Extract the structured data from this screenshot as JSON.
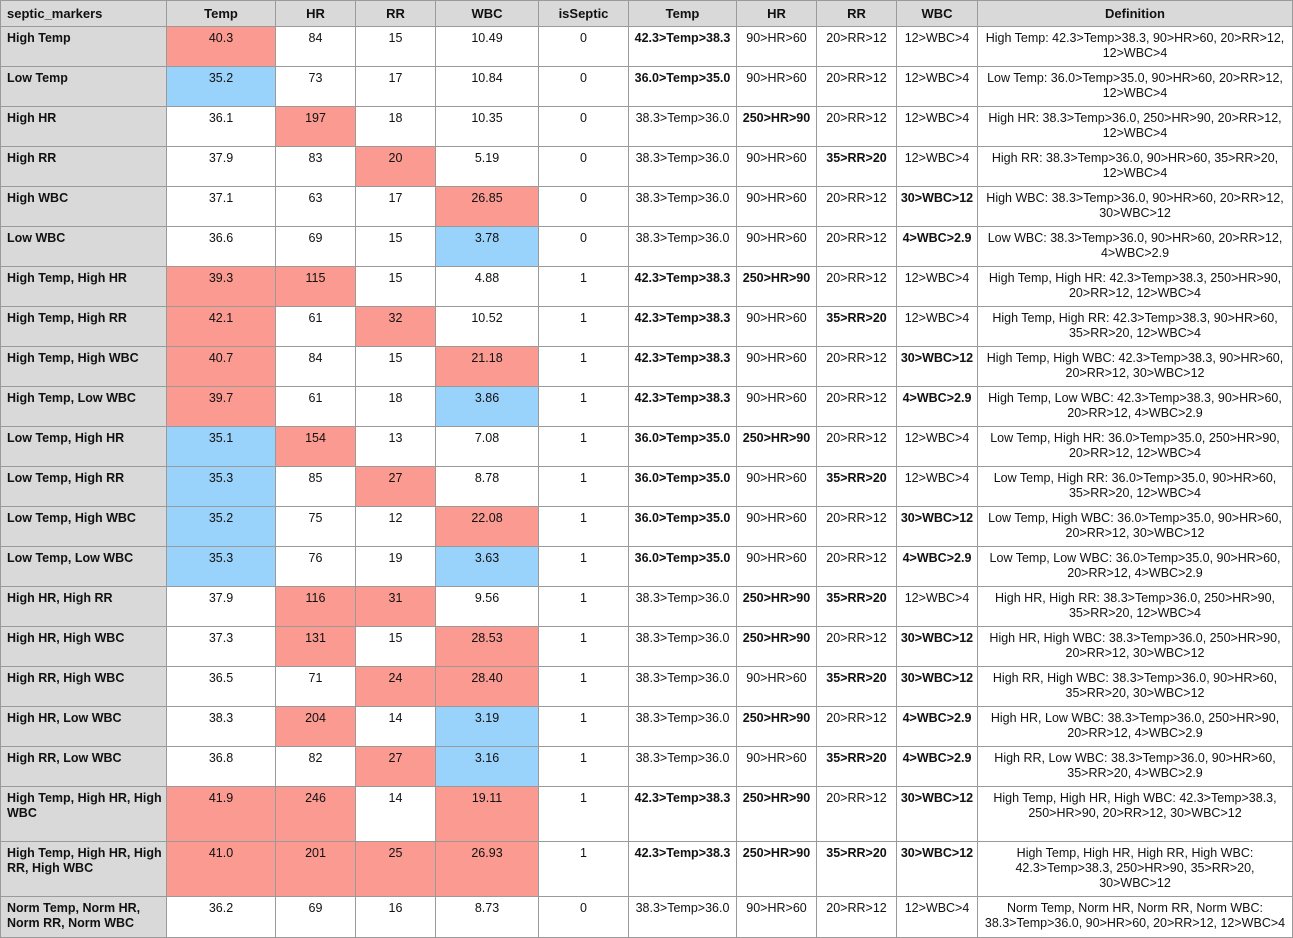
{
  "columns": [
    "septic_markers",
    "Temp",
    "HR",
    "RR",
    "WBC",
    "isSeptic",
    "Temp",
    "HR",
    "RR",
    "WBC",
    "Definition"
  ],
  "colors": {
    "high": "#fa9a91",
    "low": "#99d3fc",
    "header": "#d9d9d9"
  },
  "rows": [
    {
      "name": "High Temp",
      "temp": "40.3",
      "hr": "84",
      "rr": "15",
      "wbc": "10.49",
      "septic": "0",
      "rTemp": "42.3>Temp>38.3",
      "rHr": "90>HR>60",
      "rRr": "20>RR>12",
      "rWbc": "12>WBC>4",
      "def": "High Temp: 42.3>Temp>38.3, 90>HR>60, 20>RR>12, 12>WBC>4",
      "s": {
        "temp": "hi",
        "rTemp": "b"
      }
    },
    {
      "name": "Low Temp",
      "temp": "35.2",
      "hr": "73",
      "rr": "17",
      "wbc": "10.84",
      "septic": "0",
      "rTemp": "36.0>Temp>35.0",
      "rHr": "90>HR>60",
      "rRr": "20>RR>12",
      "rWbc": "12>WBC>4",
      "def": "Low Temp: 36.0>Temp>35.0, 90>HR>60, 20>RR>12, 12>WBC>4",
      "s": {
        "temp": "lo",
        "rTemp": "b"
      }
    },
    {
      "name": "High HR",
      "temp": "36.1",
      "hr": "197",
      "rr": "18",
      "wbc": "10.35",
      "septic": "0",
      "rTemp": "38.3>Temp>36.0",
      "rHr": "250>HR>90",
      "rRr": "20>RR>12",
      "rWbc": "12>WBC>4",
      "def": "High HR: 38.3>Temp>36.0, 250>HR>90, 20>RR>12, 12>WBC>4",
      "s": {
        "hr": "hi",
        "rHr": "b"
      }
    },
    {
      "name": "High RR",
      "temp": "37.9",
      "hr": "83",
      "rr": "20",
      "wbc": "5.19",
      "septic": "0",
      "rTemp": "38.3>Temp>36.0",
      "rHr": "90>HR>60",
      "rRr": "35>RR>20",
      "rWbc": "12>WBC>4",
      "def": "High RR: 38.3>Temp>36.0, 90>HR>60, 35>RR>20, 12>WBC>4",
      "s": {
        "rr": "hi",
        "rRr": "b"
      }
    },
    {
      "name": "High WBC",
      "temp": "37.1",
      "hr": "63",
      "rr": "17",
      "wbc": "26.85",
      "septic": "0",
      "rTemp": "38.3>Temp>36.0",
      "rHr": "90>HR>60",
      "rRr": "20>RR>12",
      "rWbc": "30>WBC>12",
      "def": "High WBC: 38.3>Temp>36.0, 90>HR>60, 20>RR>12, 30>WBC>12",
      "s": {
        "wbc": "hi",
        "rWbc": "b"
      }
    },
    {
      "name": "Low WBC",
      "temp": "36.6",
      "hr": "69",
      "rr": "15",
      "wbc": "3.78",
      "septic": "0",
      "rTemp": "38.3>Temp>36.0",
      "rHr": "90>HR>60",
      "rRr": "20>RR>12",
      "rWbc": "4>WBC>2.9",
      "def": "Low WBC: 38.3>Temp>36.0, 90>HR>60, 20>RR>12, 4>WBC>2.9",
      "s": {
        "wbc": "lo",
        "rWbc": "b"
      }
    },
    {
      "name": "High Temp, High HR",
      "temp": "39.3",
      "hr": "115",
      "rr": "15",
      "wbc": "4.88",
      "septic": "1",
      "rTemp": "42.3>Temp>38.3",
      "rHr": "250>HR>90",
      "rRr": "20>RR>12",
      "rWbc": "12>WBC>4",
      "def": "High Temp, High HR: 42.3>Temp>38.3, 250>HR>90, 20>RR>12, 12>WBC>4",
      "s": {
        "temp": "hi",
        "hr": "hi",
        "rTemp": "b",
        "rHr": "b"
      }
    },
    {
      "name": "High Temp, High RR",
      "temp": "42.1",
      "hr": "61",
      "rr": "32",
      "wbc": "10.52",
      "septic": "1",
      "rTemp": "42.3>Temp>38.3",
      "rHr": "90>HR>60",
      "rRr": "35>RR>20",
      "rWbc": "12>WBC>4",
      "def": "High Temp, High RR: 42.3>Temp>38.3, 90>HR>60, 35>RR>20, 12>WBC>4",
      "s": {
        "temp": "hi",
        "rr": "hi",
        "rTemp": "b",
        "rRr": "b"
      }
    },
    {
      "name": "High Temp, High WBC",
      "temp": "40.7",
      "hr": "84",
      "rr": "15",
      "wbc": "21.18",
      "septic": "1",
      "rTemp": "42.3>Temp>38.3",
      "rHr": "90>HR>60",
      "rRr": "20>RR>12",
      "rWbc": "30>WBC>12",
      "def": "High Temp, High WBC: 42.3>Temp>38.3, 90>HR>60, 20>RR>12, 30>WBC>12",
      "s": {
        "temp": "hi",
        "wbc": "hi",
        "rTemp": "b",
        "rWbc": "b"
      }
    },
    {
      "name": "High Temp, Low WBC",
      "temp": "39.7",
      "hr": "61",
      "rr": "18",
      "wbc": "3.86",
      "septic": "1",
      "rTemp": "42.3>Temp>38.3",
      "rHr": "90>HR>60",
      "rRr": "20>RR>12",
      "rWbc": "4>WBC>2.9",
      "def": "High Temp, Low WBC: 42.3>Temp>38.3, 90>HR>60, 20>RR>12, 4>WBC>2.9",
      "s": {
        "temp": "hi",
        "wbc": "lo",
        "rTemp": "b",
        "rWbc": "b"
      }
    },
    {
      "name": "Low Temp, High HR",
      "temp": "35.1",
      "hr": "154",
      "rr": "13",
      "wbc": "7.08",
      "septic": "1",
      "rTemp": "36.0>Temp>35.0",
      "rHr": "250>HR>90",
      "rRr": "20>RR>12",
      "rWbc": "12>WBC>4",
      "def": "Low Temp, High HR: 36.0>Temp>35.0, 250>HR>90, 20>RR>12, 12>WBC>4",
      "s": {
        "temp": "lo",
        "hr": "hi",
        "rTemp": "b",
        "rHr": "b"
      }
    },
    {
      "name": "Low Temp, High RR",
      "temp": "35.3",
      "hr": "85",
      "rr": "27",
      "wbc": "8.78",
      "septic": "1",
      "rTemp": "36.0>Temp>35.0",
      "rHr": "90>HR>60",
      "rRr": "35>RR>20",
      "rWbc": "12>WBC>4",
      "def": "Low Temp, High RR: 36.0>Temp>35.0, 90>HR>60, 35>RR>20, 12>WBC>4",
      "s": {
        "temp": "lo",
        "rr": "hi",
        "rTemp": "b",
        "rRr": "b"
      }
    },
    {
      "name": "Low Temp, High WBC",
      "temp": "35.2",
      "hr": "75",
      "rr": "12",
      "wbc": "22.08",
      "septic": "1",
      "rTemp": "36.0>Temp>35.0",
      "rHr": "90>HR>60",
      "rRr": "20>RR>12",
      "rWbc": "30>WBC>12",
      "def": "Low Temp, High WBC: 36.0>Temp>35.0, 90>HR>60, 20>RR>12, 30>WBC>12",
      "s": {
        "temp": "lo",
        "wbc": "hi",
        "rTemp": "b",
        "rWbc": "b"
      }
    },
    {
      "name": "Low Temp, Low WBC",
      "temp": "35.3",
      "hr": "76",
      "rr": "19",
      "wbc": "3.63",
      "septic": "1",
      "rTemp": "36.0>Temp>35.0",
      "rHr": "90>HR>60",
      "rRr": "20>RR>12",
      "rWbc": "4>WBC>2.9",
      "def": "Low Temp, Low WBC: 36.0>Temp>35.0, 90>HR>60, 20>RR>12, 4>WBC>2.9",
      "s": {
        "temp": "lo",
        "wbc": "lo",
        "rTemp": "b",
        "rWbc": "b"
      }
    },
    {
      "name": "High HR, High RR",
      "temp": "37.9",
      "hr": "116",
      "rr": "31",
      "wbc": "9.56",
      "septic": "1",
      "rTemp": "38.3>Temp>36.0",
      "rHr": "250>HR>90",
      "rRr": "35>RR>20",
      "rWbc": "12>WBC>4",
      "def": "High HR, High RR: 38.3>Temp>36.0, 250>HR>90, 35>RR>20, 12>WBC>4",
      "s": {
        "hr": "hi",
        "rr": "hi",
        "rHr": "b",
        "rRr": "b"
      }
    },
    {
      "name": "High HR, High WBC",
      "temp": "37.3",
      "hr": "131",
      "rr": "15",
      "wbc": "28.53",
      "septic": "1",
      "rTemp": "38.3>Temp>36.0",
      "rHr": "250>HR>90",
      "rRr": "20>RR>12",
      "rWbc": "30>WBC>12",
      "def": "High HR, High WBC: 38.3>Temp>36.0, 250>HR>90, 20>RR>12, 30>WBC>12",
      "s": {
        "hr": "hi",
        "wbc": "hi",
        "rHr": "b",
        "rWbc": "b"
      }
    },
    {
      "name": "High RR, High WBC",
      "temp": "36.5",
      "hr": "71",
      "rr": "24",
      "wbc": "28.40",
      "septic": "1",
      "rTemp": "38.3>Temp>36.0",
      "rHr": "90>HR>60",
      "rRr": "35>RR>20",
      "rWbc": "30>WBC>12",
      "def": "High RR, High WBC: 38.3>Temp>36.0, 90>HR>60, 35>RR>20, 30>WBC>12",
      "s": {
        "rr": "hi",
        "wbc": "hi",
        "rRr": "b",
        "rWbc": "b"
      }
    },
    {
      "name": "High HR, Low WBC",
      "temp": "38.3",
      "hr": "204",
      "rr": "14",
      "wbc": "3.19",
      "septic": "1",
      "rTemp": "38.3>Temp>36.0",
      "rHr": "250>HR>90",
      "rRr": "20>RR>12",
      "rWbc": "4>WBC>2.9",
      "def": "High HR, Low WBC: 38.3>Temp>36.0, 250>HR>90, 20>RR>12, 4>WBC>2.9",
      "s": {
        "hr": "hi",
        "wbc": "lo",
        "rHr": "b",
        "rWbc": "b"
      }
    },
    {
      "name": "High RR, Low WBC",
      "temp": "36.8",
      "hr": "82",
      "rr": "27",
      "wbc": "3.16",
      "septic": "1",
      "rTemp": "38.3>Temp>36.0",
      "rHr": "90>HR>60",
      "rRr": "35>RR>20",
      "rWbc": "4>WBC>2.9",
      "def": "High RR, Low WBC: 38.3>Temp>36.0, 90>HR>60, 35>RR>20, 4>WBC>2.9",
      "s": {
        "rr": "hi",
        "wbc": "lo",
        "rRr": "b",
        "rWbc": "b"
      }
    },
    {
      "name": "High Temp, High HR, High WBC",
      "temp": "41.9",
      "hr": "246",
      "rr": "14",
      "wbc": "19.11",
      "septic": "1",
      "rTemp": "42.3>Temp>38.3",
      "rHr": "250>HR>90",
      "rRr": "20>RR>12",
      "rWbc": "30>WBC>12",
      "def": "High Temp, High HR, High WBC: 42.3>Temp>38.3, 250>HR>90, 20>RR>12, 30>WBC>12",
      "s": {
        "temp": "hi",
        "hr": "hi",
        "wbc": "hi",
        "rTemp": "b",
        "rHr": "b",
        "rWbc": "b"
      }
    },
    {
      "name": "High Temp, High HR, High RR, High WBC",
      "temp": "41.0",
      "hr": "201",
      "rr": "25",
      "wbc": "26.93",
      "septic": "1",
      "rTemp": "42.3>Temp>38.3",
      "rHr": "250>HR>90",
      "rRr": "35>RR>20",
      "rWbc": "30>WBC>12",
      "def": "High Temp, High HR, High RR, High WBC: 42.3>Temp>38.3, 250>HR>90, 35>RR>20, 30>WBC>12",
      "s": {
        "temp": "hi",
        "hr": "hi",
        "rr": "hi",
        "wbc": "hi",
        "rTemp": "b",
        "rHr": "b",
        "rRr": "b",
        "rWbc": "b"
      }
    },
    {
      "name": "Norm Temp, Norm HR, Norm RR, Norm WBC",
      "temp": "36.2",
      "hr": "69",
      "rr": "16",
      "wbc": "8.73",
      "septic": "0",
      "rTemp": "38.3>Temp>36.0",
      "rHr": "90>HR>60",
      "rRr": "20>RR>12",
      "rWbc": "12>WBC>4",
      "def": "Norm Temp, Norm HR, Norm RR, Norm WBC: 38.3>Temp>36.0, 90>HR>60, 20>RR>12, 12>WBC>4",
      "s": {}
    }
  ]
}
